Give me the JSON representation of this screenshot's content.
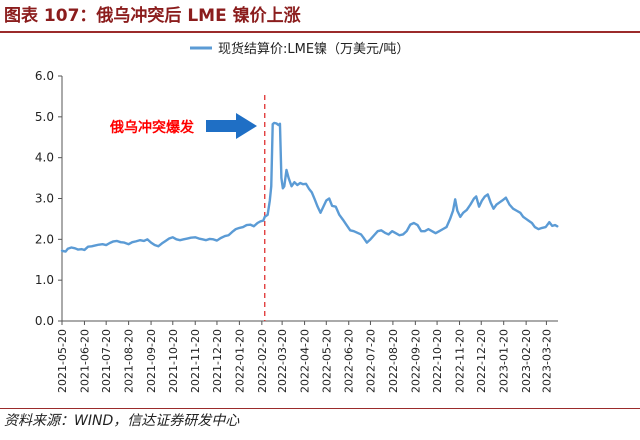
{
  "header": {
    "title": "图表 107：俄乌冲突后 LME 镍价上涨"
  },
  "footer": {
    "source": "资料来源：WIND，信达证券研发中心"
  },
  "chart_data": {
    "type": "line",
    "title": "",
    "xlabel": "",
    "ylabel": "",
    "ylim": [
      0,
      6
    ],
    "yticks": [
      "0.0",
      "1.0",
      "2.0",
      "3.0",
      "4.0",
      "5.0",
      "6.0"
    ],
    "xticks": [
      "2021-05-20",
      "2021-06-20",
      "2021-07-20",
      "2021-08-20",
      "2021-09-20",
      "2021-10-20",
      "2021-11-20",
      "2021-12-20",
      "2022-01-20",
      "2022-02-20",
      "2022-03-20",
      "2022-04-20",
      "2022-05-20",
      "2022-06-20",
      "2022-07-20",
      "2022-08-20",
      "2022-09-20",
      "2022-10-20",
      "2022-11-20",
      "2022-12-20",
      "2023-01-20",
      "2023-02-20",
      "2023-03-20"
    ],
    "xrange": [
      "2021-05-20",
      "2023-04-05"
    ],
    "legend": {
      "position": "top-center"
    },
    "grid": false,
    "line_color": "#5B9BD5",
    "annotation": {
      "text": "俄乌冲突爆发",
      "date": "2022-02-24",
      "text_color": "#FF0000",
      "line_color": "#E03030",
      "arrow_color": "#1F6FC5"
    },
    "series": [
      {
        "name": "现货结算价:LME镍（万美元/吨）",
        "points": [
          [
            "2021-05-20",
            1.72
          ],
          [
            "2021-05-25",
            1.7
          ],
          [
            "2021-05-28",
            1.77
          ],
          [
            "2021-06-02",
            1.8
          ],
          [
            "2021-06-07",
            1.78
          ],
          [
            "2021-06-11",
            1.75
          ],
          [
            "2021-06-16",
            1.76
          ],
          [
            "2021-06-20",
            1.74
          ],
          [
            "2021-06-25",
            1.82
          ],
          [
            "2021-06-30",
            1.83
          ],
          [
            "2021-07-05",
            1.85
          ],
          [
            "2021-07-10",
            1.87
          ],
          [
            "2021-07-15",
            1.88
          ],
          [
            "2021-07-20",
            1.86
          ],
          [
            "2021-07-25",
            1.91
          ],
          [
            "2021-07-30",
            1.95
          ],
          [
            "2021-08-04",
            1.96
          ],
          [
            "2021-08-09",
            1.93
          ],
          [
            "2021-08-14",
            1.92
          ],
          [
            "2021-08-20",
            1.88
          ],
          [
            "2021-08-25",
            1.93
          ],
          [
            "2021-08-30",
            1.95
          ],
          [
            "2021-09-05",
            1.98
          ],
          [
            "2021-09-10",
            1.96
          ],
          [
            "2021-09-15",
            2.0
          ],
          [
            "2021-09-20",
            1.92
          ],
          [
            "2021-09-25",
            1.86
          ],
          [
            "2021-09-30",
            1.83
          ],
          [
            "2021-10-05",
            1.9
          ],
          [
            "2021-10-10",
            1.96
          ],
          [
            "2021-10-15",
            2.02
          ],
          [
            "2021-10-20",
            2.05
          ],
          [
            "2021-10-25",
            2.0
          ],
          [
            "2021-10-30",
            1.98
          ],
          [
            "2021-11-04",
            2.0
          ],
          [
            "2021-11-09",
            2.02
          ],
          [
            "2021-11-14",
            2.04
          ],
          [
            "2021-11-20",
            2.05
          ],
          [
            "2021-11-25",
            2.02
          ],
          [
            "2021-11-30",
            2.0
          ],
          [
            "2021-12-05",
            1.98
          ],
          [
            "2021-12-10",
            2.01
          ],
          [
            "2021-12-15",
            2.0
          ],
          [
            "2021-12-20",
            1.97
          ],
          [
            "2021-12-25",
            2.03
          ],
          [
            "2021-12-31",
            2.08
          ],
          [
            "2022-01-05",
            2.1
          ],
          [
            "2022-01-10",
            2.18
          ],
          [
            "2022-01-15",
            2.25
          ],
          [
            "2022-01-20",
            2.28
          ],
          [
            "2022-01-25",
            2.3
          ],
          [
            "2022-01-30",
            2.35
          ],
          [
            "2022-02-04",
            2.36
          ],
          [
            "2022-02-09",
            2.32
          ],
          [
            "2022-02-14",
            2.4
          ],
          [
            "2022-02-18",
            2.44
          ],
          [
            "2022-02-22",
            2.46
          ],
          [
            "2022-02-24",
            2.55
          ],
          [
            "2022-02-28",
            2.6
          ],
          [
            "2022-03-03",
            2.95
          ],
          [
            "2022-03-05",
            3.3
          ],
          [
            "2022-03-07",
            4.82
          ],
          [
            "2022-03-09",
            4.85
          ],
          [
            "2022-03-12",
            4.84
          ],
          [
            "2022-03-15",
            4.8
          ],
          [
            "2022-03-17",
            4.83
          ],
          [
            "2022-03-19",
            3.5
          ],
          [
            "2022-03-21",
            3.25
          ],
          [
            "2022-03-23",
            3.3
          ],
          [
            "2022-03-26",
            3.7
          ],
          [
            "2022-03-29",
            3.5
          ],
          [
            "2022-04-02",
            3.3
          ],
          [
            "2022-04-06",
            3.4
          ],
          [
            "2022-04-10",
            3.33
          ],
          [
            "2022-04-14",
            3.38
          ],
          [
            "2022-04-18",
            3.35
          ],
          [
            "2022-04-22",
            3.36
          ],
          [
            "2022-04-26",
            3.24
          ],
          [
            "2022-04-30",
            3.15
          ],
          [
            "2022-05-04",
            2.98
          ],
          [
            "2022-05-08",
            2.8
          ],
          [
            "2022-05-12",
            2.65
          ],
          [
            "2022-05-16",
            2.8
          ],
          [
            "2022-05-20",
            2.95
          ],
          [
            "2022-05-24",
            3.0
          ],
          [
            "2022-05-28",
            2.82
          ],
          [
            "2022-06-02",
            2.8
          ],
          [
            "2022-06-07",
            2.6
          ],
          [
            "2022-06-12",
            2.48
          ],
          [
            "2022-06-17",
            2.35
          ],
          [
            "2022-06-22",
            2.22
          ],
          [
            "2022-06-27",
            2.2
          ],
          [
            "2022-07-02",
            2.16
          ],
          [
            "2022-07-07",
            2.12
          ],
          [
            "2022-07-10",
            2.05
          ],
          [
            "2022-07-15",
            1.92
          ],
          [
            "2022-07-20",
            2.0
          ],
          [
            "2022-07-25",
            2.1
          ],
          [
            "2022-07-30",
            2.2
          ],
          [
            "2022-08-04",
            2.22
          ],
          [
            "2022-08-09",
            2.16
          ],
          [
            "2022-08-14",
            2.12
          ],
          [
            "2022-08-19",
            2.2
          ],
          [
            "2022-08-24",
            2.15
          ],
          [
            "2022-08-29",
            2.1
          ],
          [
            "2022-09-03",
            2.12
          ],
          [
            "2022-09-08",
            2.2
          ],
          [
            "2022-09-13",
            2.36
          ],
          [
            "2022-09-18",
            2.4
          ],
          [
            "2022-09-23",
            2.35
          ],
          [
            "2022-09-28",
            2.2
          ],
          [
            "2022-10-03",
            2.2
          ],
          [
            "2022-10-08",
            2.25
          ],
          [
            "2022-10-13",
            2.2
          ],
          [
            "2022-10-18",
            2.15
          ],
          [
            "2022-10-23",
            2.2
          ],
          [
            "2022-10-28",
            2.25
          ],
          [
            "2022-11-02",
            2.3
          ],
          [
            "2022-11-07",
            2.5
          ],
          [
            "2022-11-11",
            2.7
          ],
          [
            "2022-11-14",
            2.98
          ],
          [
            "2022-11-17",
            2.7
          ],
          [
            "2022-11-21",
            2.55
          ],
          [
            "2022-11-25",
            2.65
          ],
          [
            "2022-11-30",
            2.72
          ],
          [
            "2022-12-05",
            2.85
          ],
          [
            "2022-12-10",
            3.0
          ],
          [
            "2022-12-13",
            3.05
          ],
          [
            "2022-12-17",
            2.8
          ],
          [
            "2022-12-21",
            2.95
          ],
          [
            "2022-12-25",
            3.05
          ],
          [
            "2022-12-29",
            3.1
          ],
          [
            "2023-01-02",
            2.9
          ],
          [
            "2023-01-06",
            2.75
          ],
          [
            "2023-01-10",
            2.85
          ],
          [
            "2023-01-14",
            2.9
          ],
          [
            "2023-01-18",
            2.95
          ],
          [
            "2023-01-23",
            3.02
          ],
          [
            "2023-01-28",
            2.85
          ],
          [
            "2023-02-02",
            2.75
          ],
          [
            "2023-02-07",
            2.7
          ],
          [
            "2023-02-12",
            2.65
          ],
          [
            "2023-02-16",
            2.55
          ],
          [
            "2023-02-20",
            2.5
          ],
          [
            "2023-02-24",
            2.45
          ],
          [
            "2023-02-28",
            2.4
          ],
          [
            "2023-03-04",
            2.3
          ],
          [
            "2023-03-09",
            2.25
          ],
          [
            "2023-03-14",
            2.28
          ],
          [
            "2023-03-19",
            2.3
          ],
          [
            "2023-03-24",
            2.42
          ],
          [
            "2023-03-28",
            2.33
          ],
          [
            "2023-04-01",
            2.35
          ],
          [
            "2023-04-04",
            2.32
          ]
        ]
      }
    ]
  }
}
